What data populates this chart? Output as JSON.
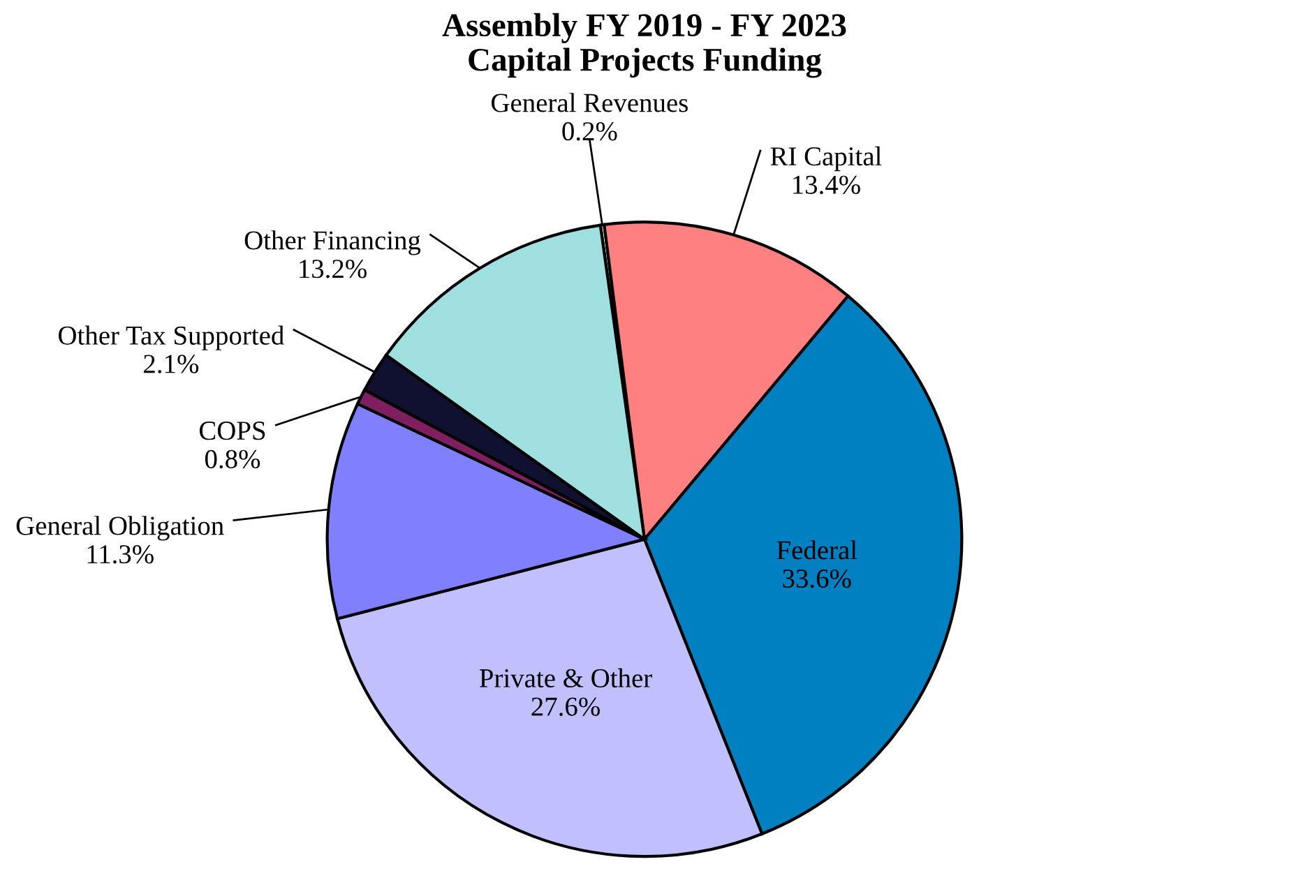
{
  "chart_data": {
    "type": "pie",
    "title": "Assembly FY 2019 - FY 2023\nCapital Projects Funding",
    "categories": [
      "General Revenues",
      "RI Capital",
      "Federal",
      "Private & Other",
      "General Obligation",
      "COPS",
      "Other Tax Supported",
      "Other Financing"
    ],
    "values": [
      0.2,
      13.4,
      33.6,
      27.6,
      11.3,
      0.8,
      2.1,
      13.2
    ],
    "colors": [
      "#ffffc0",
      "#ff8080",
      "#0080c0",
      "#c0c0ff",
      "#8080ff",
      "#7f1f5f",
      "#101030",
      "#a0dfdf"
    ],
    "value_labels": [
      "0.2%",
      "13.4%",
      "33.6%",
      "27.6%",
      "11.3%",
      "0.8%",
      "2.1%",
      "13.2%"
    ]
  }
}
